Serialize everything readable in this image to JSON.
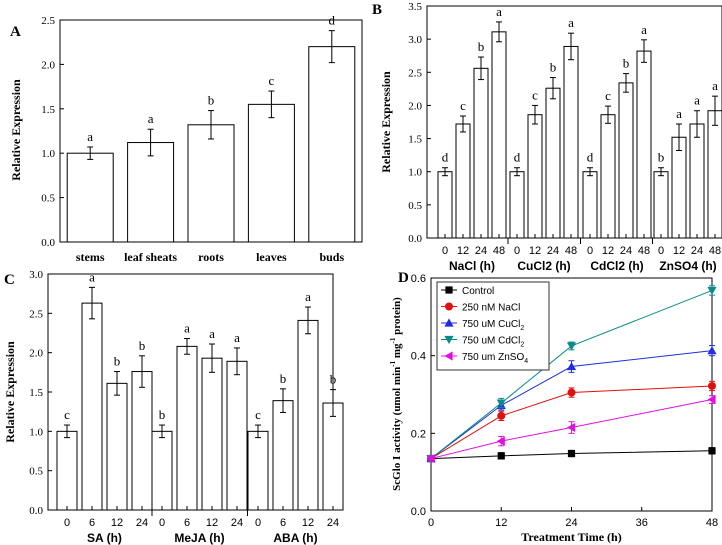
{
  "chart_data": [
    {
      "panel": "A",
      "type": "bar",
      "ylabel": "Relative Expression",
      "ylim": [
        0,
        2.5
      ],
      "yticks": [
        0.0,
        0.5,
        1.0,
        1.5,
        2.0,
        2.5
      ],
      "categories": [
        "stems",
        "leaf sheats",
        "roots",
        "leaves",
        "buds"
      ],
      "values": [
        1.0,
        1.12,
        1.32,
        1.55,
        2.2
      ],
      "errors": [
        0.07,
        0.15,
        0.16,
        0.15,
        0.18
      ],
      "letters": [
        "a",
        "a",
        "b",
        "c",
        "d"
      ]
    },
    {
      "panel": "B",
      "type": "bar",
      "ylabel": "Relative Expression",
      "ylim": [
        0,
        3.5
      ],
      "yticks": [
        0.0,
        0.5,
        1.0,
        1.5,
        2.0,
        2.5,
        3.0,
        3.5
      ],
      "groups": [
        {
          "label": "NaCl (h)",
          "ticks": [
            "0",
            "12",
            "24",
            "48"
          ],
          "values": [
            1.0,
            1.72,
            2.56,
            3.11
          ],
          "errors": [
            0.06,
            0.12,
            0.17,
            0.15
          ],
          "letters": [
            "d",
            "c",
            "b",
            "a"
          ]
        },
        {
          "label": "CuCl2 (h)",
          "ticks": [
            "0",
            "12",
            "24",
            "48"
          ],
          "values": [
            1.0,
            1.86,
            2.26,
            2.89
          ],
          "errors": [
            0.06,
            0.14,
            0.16,
            0.2
          ],
          "letters": [
            "d",
            "c",
            "b",
            "a"
          ]
        },
        {
          "label": "CdCl2 (h)",
          "ticks": [
            "0",
            "12",
            "24",
            "48"
          ],
          "values": [
            1.0,
            1.86,
            2.34,
            2.82
          ],
          "errors": [
            0.06,
            0.13,
            0.14,
            0.17
          ],
          "letters": [
            "d",
            "c",
            "b",
            "a"
          ]
        },
        {
          "label": "ZnSO4 (h)",
          "ticks": [
            "0",
            "12",
            "24",
            "48"
          ],
          "values": [
            1.0,
            1.52,
            1.72,
            1.92
          ],
          "errors": [
            0.06,
            0.2,
            0.2,
            0.22
          ],
          "letters": [
            "b",
            "a",
            "a",
            "a"
          ]
        }
      ]
    },
    {
      "panel": "C",
      "type": "bar",
      "ylabel": "Relative Expression",
      "ylim": [
        0,
        3.0
      ],
      "yticks": [
        0.0,
        0.5,
        1.0,
        1.5,
        2.0,
        2.5,
        3.0
      ],
      "groups": [
        {
          "label": "SA (h)",
          "ticks": [
            "0",
            "6",
            "12",
            "24"
          ],
          "values": [
            1.0,
            2.63,
            1.61,
            1.76
          ],
          "errors": [
            0.08,
            0.2,
            0.15,
            0.2
          ],
          "letters": [
            "c",
            "a",
            "b",
            "b"
          ]
        },
        {
          "label": "MeJA (h)",
          "ticks": [
            "0",
            "6",
            "12",
            "24"
          ],
          "values": [
            1.0,
            2.08,
            1.93,
            1.89
          ],
          "errors": [
            0.08,
            0.1,
            0.18,
            0.17
          ],
          "letters": [
            "b",
            "a",
            "a",
            "a"
          ]
        },
        {
          "label": "ABA (h)",
          "ticks": [
            "0",
            "6",
            "12",
            "24"
          ],
          "values": [
            1.0,
            1.39,
            2.41,
            1.36
          ],
          "errors": [
            0.08,
            0.15,
            0.17,
            0.17
          ],
          "letters": [
            "c",
            "b",
            "a",
            "b"
          ]
        }
      ]
    },
    {
      "panel": "D",
      "type": "line",
      "xlabel": "Treatment Time (h)",
      "ylabel_parts": [
        "ScGlo I activity (umol min",
        "-1",
        " mg",
        "-1",
        " protein)"
      ],
      "xlim": [
        0,
        48
      ],
      "xticks": [
        0,
        12,
        24,
        36,
        48
      ],
      "ylim": [
        0,
        0.6
      ],
      "yticks": [
        0.0,
        0.2,
        0.4,
        0.6
      ],
      "x": [
        0,
        12,
        24,
        48
      ],
      "series": [
        {
          "name": "Control",
          "marker": "square",
          "color": "#000000",
          "values": [
            0.135,
            0.142,
            0.148,
            0.155
          ],
          "errors": [
            0.007,
            0.008,
            0.008,
            0.008
          ]
        },
        {
          "name": "250 nM NaCl",
          "marker": "circle",
          "color": "#e01010",
          "values": [
            0.135,
            0.245,
            0.305,
            0.322
          ],
          "errors": [
            0.007,
            0.012,
            0.012,
            0.012
          ]
        },
        {
          "name": "750 uM CuCl",
          "name_sub": "2",
          "marker": "triangle-up",
          "color": "#1f2fe0",
          "values": [
            0.135,
            0.272,
            0.372,
            0.413
          ],
          "errors": [
            0.007,
            0.012,
            0.015,
            0.013
          ]
        },
        {
          "name": "750 uM CdCl",
          "name_sub": "2",
          "marker": "triangle-down",
          "color": "#0a8a8a",
          "values": [
            0.135,
            0.278,
            0.425,
            0.568
          ],
          "errors": [
            0.007,
            0.012,
            0.01,
            0.012
          ]
        },
        {
          "name": "750 um ZnSO",
          "name_sub": "4",
          "marker": "triangle-left",
          "color": "#e010e0",
          "values": [
            0.135,
            0.18,
            0.215,
            0.287
          ],
          "errors": [
            0.007,
            0.012,
            0.015,
            0.01
          ]
        }
      ]
    }
  ]
}
